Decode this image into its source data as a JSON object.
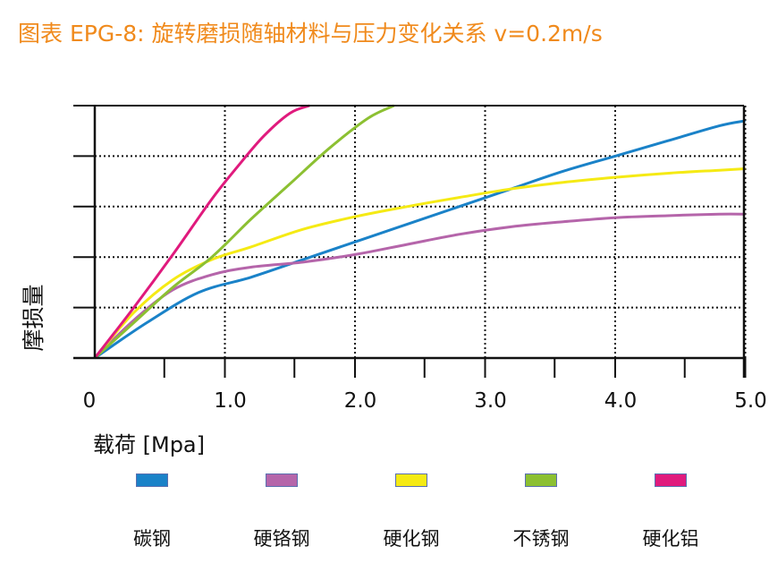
{
  "title": "图表 EPG-8: 旋转磨损随轴材料与压力变化关系 v=0.2m/s",
  "colors": {
    "title": "#f08a1c"
  },
  "chart_data": {
    "type": "line",
    "title": "图表 EPG-8: 旋转磨损随轴材料与压力变化关系 v=0.2m/s",
    "xlabel": "载荷 [Mpa]",
    "ylabel": "摩损量",
    "x_tick_labels": [
      "0",
      "1.0",
      "2.0",
      "3.0",
      "4.0",
      "5.0"
    ],
    "xlim": [
      0,
      5.0
    ],
    "ylim": [
      0,
      5
    ],
    "y_tick_labels_shown": false,
    "grid": true,
    "legend_position": "bottom",
    "series": [
      {
        "name": "碳钢",
        "color": "#1a82c8",
        "x": [
          0,
          0.4,
          0.8,
          1.2,
          1.6,
          2.0,
          2.4,
          2.8,
          3.2,
          3.6,
          4.0,
          4.4,
          4.8,
          5.0
        ],
        "y": [
          0,
          0.7,
          1.3,
          1.6,
          1.95,
          2.3,
          2.65,
          3.0,
          3.35,
          3.7,
          4.0,
          4.3,
          4.6,
          4.7
        ]
      },
      {
        "name": "硬铬钢",
        "color": "#b565aa",
        "x": [
          0,
          0.3,
          0.6,
          0.9,
          1.2,
          1.6,
          2.0,
          2.4,
          2.8,
          3.2,
          3.6,
          4.0,
          4.4,
          4.8,
          5.0
        ],
        "y": [
          0,
          0.75,
          1.35,
          1.65,
          1.8,
          1.9,
          2.05,
          2.25,
          2.45,
          2.6,
          2.7,
          2.78,
          2.82,
          2.85,
          2.85
        ]
      },
      {
        "name": "硬化钢",
        "color": "#f5ea14",
        "x": [
          0,
          0.3,
          0.6,
          0.9,
          1.2,
          1.6,
          2.0,
          2.4,
          2.8,
          3.2,
          3.6,
          4.0,
          4.4,
          4.8,
          5.0
        ],
        "y": [
          0,
          0.9,
          1.55,
          1.95,
          2.2,
          2.55,
          2.8,
          3.0,
          3.18,
          3.35,
          3.48,
          3.58,
          3.66,
          3.72,
          3.75
        ]
      },
      {
        "name": "不锈钢",
        "color": "#8cc032",
        "x": [
          0,
          0.3,
          0.6,
          0.9,
          1.2,
          1.5,
          1.8,
          2.1,
          2.3
        ],
        "y": [
          0,
          0.7,
          1.4,
          2.0,
          2.75,
          3.45,
          4.15,
          4.75,
          5.0
        ]
      },
      {
        "name": "硬化铝",
        "color": "#e01a7d",
        "x": [
          0,
          0.3,
          0.6,
          0.9,
          1.1,
          1.3,
          1.5,
          1.65
        ],
        "y": [
          0,
          1.0,
          2.05,
          3.15,
          3.8,
          4.4,
          4.85,
          5.0
        ]
      }
    ]
  }
}
